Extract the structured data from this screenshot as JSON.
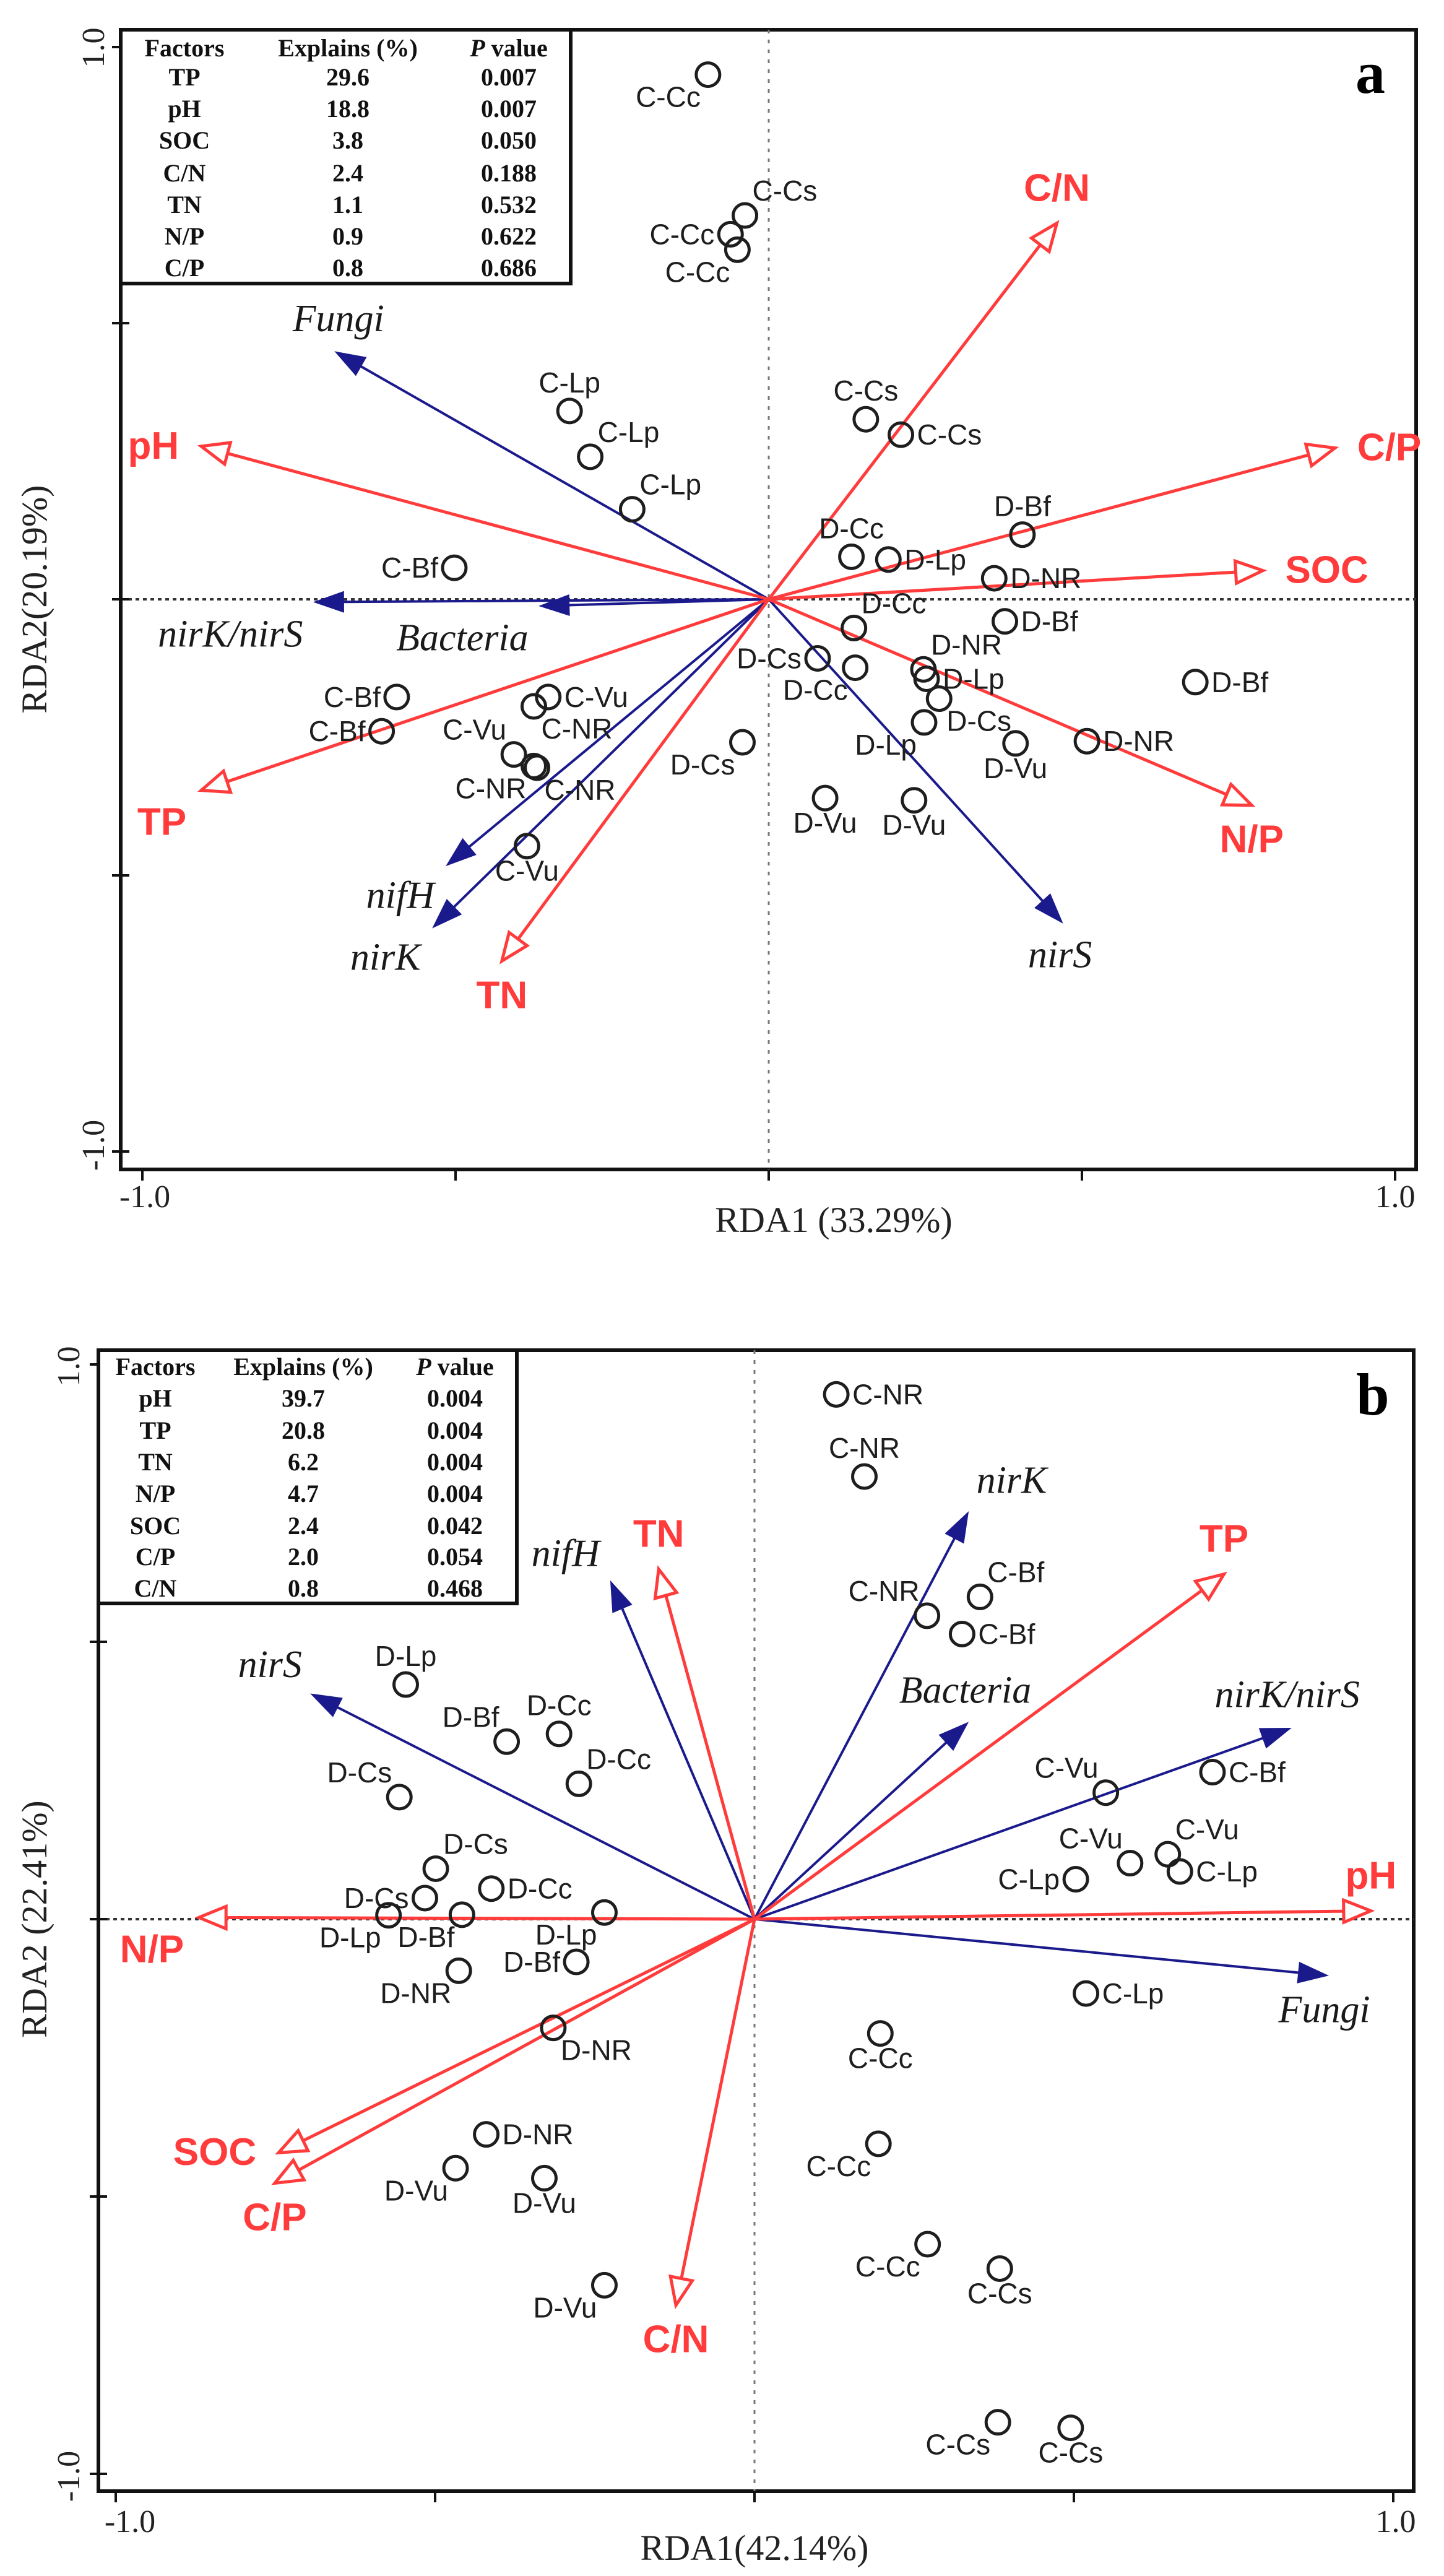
{
  "colors": {
    "environment": "#ff3b3b",
    "species": "#1a1a8c",
    "sites": "#1e1e1e"
  },
  "chart_data": [
    {
      "type": "scatter",
      "subtype": "RDA biplot",
      "panel_label": "a",
      "xlabel": "RDA1 (33.29%)",
      "ylabel": "RDA2(20.19%)",
      "xlim": [
        -1.0,
        1.0
      ],
      "ylim": [
        -1.0,
        1.0
      ],
      "x_tick_labels": [
        "-1.0",
        "1.0"
      ],
      "y_tick_labels": [
        "1.0",
        "-1.0"
      ],
      "table": {
        "headers": [
          "Factors",
          "Explains (%)",
          "P value"
        ],
        "rows": [
          [
            "TP",
            "29.6",
            "0.007"
          ],
          [
            "pH",
            "18.8",
            "0.007"
          ],
          [
            "SOC",
            "3.8",
            "0.050"
          ],
          [
            "C/N",
            "2.4",
            "0.188"
          ],
          [
            "TN",
            "1.1",
            "0.532"
          ],
          [
            "N/P",
            "0.9",
            "0.622"
          ],
          [
            "C/P",
            "0.8",
            "0.686"
          ]
        ]
      },
      "environment_arrows": [
        {
          "name": "TP",
          "x": -0.906,
          "y": -0.346,
          "label_pos": "bottom-left"
        },
        {
          "name": "pH",
          "x": -0.906,
          "y": 0.277,
          "label_pos": "left"
        },
        {
          "name": "SOC",
          "x": 0.789,
          "y": 0.052,
          "label_pos": "right"
        },
        {
          "name": "C/N",
          "x": 0.46,
          "y": 0.681,
          "label_pos": "top"
        },
        {
          "name": "TN",
          "x": -0.426,
          "y": -0.655,
          "label_pos": "bottom"
        },
        {
          "name": "N/P",
          "x": 0.771,
          "y": -0.373,
          "label_pos": "bottom"
        },
        {
          "name": "C/P",
          "x": 0.904,
          "y": 0.274,
          "label_pos": "right"
        }
      ],
      "species_arrows": [
        {
          "name": "Fungi",
          "x": -0.687,
          "y": 0.445,
          "label_pos": "top"
        },
        {
          "name": "Bacteria",
          "x": -0.36,
          "y": -0.012,
          "label_pos": "bottom-left"
        },
        {
          "name": "nirK/nirS",
          "x": -0.72,
          "y": -0.005,
          "label_pos": "bottom-left"
        },
        {
          "name": "nifH",
          "x": -0.51,
          "y": -0.478,
          "label_pos": "bottom-left"
        },
        {
          "name": "nirK",
          "x": -0.532,
          "y": -0.59,
          "label_pos": "bottom-left"
        },
        {
          "name": "nirS",
          "x": 0.465,
          "y": -0.581,
          "label_pos": "bottom"
        }
      ],
      "sites": [
        {
          "label": "C-Cc",
          "x": -0.097,
          "y": 0.95,
          "label_pos": "bottom-left"
        },
        {
          "label": "C-Cs",
          "x": -0.038,
          "y": 0.695,
          "label_pos": "top-right"
        },
        {
          "label": "C-Cc",
          "x": -0.061,
          "y": 0.661,
          "label_pos": "left"
        },
        {
          "label": "C-Cc",
          "x": -0.05,
          "y": 0.633,
          "label_pos": "bottom-left"
        },
        {
          "label": "C-Lp",
          "x": -0.318,
          "y": 0.341,
          "label_pos": "top"
        },
        {
          "label": "C-Lp",
          "x": -0.285,
          "y": 0.258,
          "label_pos": "top-right"
        },
        {
          "label": "C-Lp",
          "x": -0.218,
          "y": 0.163,
          "label_pos": "top-right"
        },
        {
          "label": "C-Cs",
          "x": 0.155,
          "y": 0.326,
          "label_pos": "top"
        },
        {
          "label": "C-Cs",
          "x": 0.211,
          "y": 0.298,
          "label_pos": "right"
        },
        {
          "label": "D-Bf",
          "x": 0.405,
          "y": 0.117,
          "label_pos": "top"
        },
        {
          "label": "D-Cc",
          "x": 0.132,
          "y": 0.077,
          "label_pos": "top"
        },
        {
          "label": "D-Lp",
          "x": 0.191,
          "y": 0.072,
          "label_pos": "right"
        },
        {
          "label": "D-NR",
          "x": 0.36,
          "y": 0.038,
          "label_pos": "right"
        },
        {
          "label": "C-Bf",
          "x": -0.502,
          "y": 0.057,
          "label_pos": "left"
        },
        {
          "label": "D-Cc",
          "x": 0.136,
          "y": -0.052,
          "label_pos": "top-right"
        },
        {
          "label": "D-Bf",
          "x": 0.377,
          "y": -0.04,
          "label_pos": "right"
        },
        {
          "label": "D-NR",
          "x": 0.247,
          "y": -0.127,
          "label_pos": "top-right"
        },
        {
          "label": "D-Lp",
          "x": 0.252,
          "y": -0.144,
          "label_pos": "right"
        },
        {
          "label": "D-Cs",
          "x": 0.078,
          "y": -0.107,
          "label_pos": "left"
        },
        {
          "label": "D-Cc",
          "x": 0.138,
          "y": -0.124,
          "label_pos": "bottom-left"
        },
        {
          "label": "D-Cs",
          "x": 0.272,
          "y": -0.18,
          "label_pos": "bottom-right"
        },
        {
          "label": "D-Lp",
          "x": 0.248,
          "y": -0.223,
          "label_pos": "bottom-left"
        },
        {
          "label": "D-Vu",
          "x": 0.394,
          "y": -0.261,
          "label_pos": "bottom"
        },
        {
          "label": "D-NR",
          "x": 0.508,
          "y": -0.257,
          "label_pos": "right"
        },
        {
          "label": "D-Bf",
          "x": 0.681,
          "y": -0.15,
          "label_pos": "right"
        },
        {
          "label": "D-Cs",
          "x": -0.042,
          "y": -0.259,
          "label_pos": "bottom-left"
        },
        {
          "label": "D-Vu",
          "x": 0.09,
          "y": -0.36,
          "label_pos": "bottom"
        },
        {
          "label": "D-Vu",
          "x": 0.232,
          "y": -0.364,
          "label_pos": "bottom"
        },
        {
          "label": "C-Bf",
          "x": -0.594,
          "y": -0.177,
          "label_pos": "left"
        },
        {
          "label": "C-Bf",
          "x": -0.618,
          "y": -0.239,
          "label_pos": "left"
        },
        {
          "label": "C-Vu",
          "x": -0.352,
          "y": -0.177,
          "label_pos": "right"
        },
        {
          "label": "C-NR",
          "x": -0.375,
          "y": -0.194,
          "label_pos": "bottom-right"
        },
        {
          "label": "C-Vu",
          "x": -0.407,
          "y": -0.281,
          "label_pos": "top-left"
        },
        {
          "label": "C-NR",
          "x": -0.375,
          "y": -0.302,
          "label_pos": "bottom-left"
        },
        {
          "label": "C-NR",
          "x": -0.37,
          "y": -0.305,
          "label_pos": "bottom-right"
        },
        {
          "label": "C-Vu",
          "x": -0.386,
          "y": -0.447,
          "label_pos": "bottom"
        }
      ]
    },
    {
      "type": "scatter",
      "subtype": "RDA biplot",
      "panel_label": "b",
      "xlabel": "RDA1(42.14%)",
      "ylabel": "RDA2 (22.41%)",
      "xlim": [
        -1.0,
        1.0
      ],
      "ylim": [
        -1.0,
        1.0
      ],
      "x_tick_labels": [
        "-1.0",
        "1.0"
      ],
      "y_tick_labels": [
        "1.0",
        "-1.0"
      ],
      "table": {
        "headers": [
          "Factors",
          "Explains (%)",
          "P value"
        ],
        "rows": [
          [
            "pH",
            "39.7",
            "0.004"
          ],
          [
            "TP",
            "20.8",
            "0.004"
          ],
          [
            "TN",
            "6.2",
            "0.004"
          ],
          [
            "N/P",
            "4.7",
            "0.004"
          ],
          [
            "SOC",
            "2.4",
            "0.042"
          ],
          [
            "C/P",
            "2.0",
            "0.054"
          ],
          [
            "C/N",
            "0.8",
            "0.468"
          ]
        ]
      },
      "environment_arrows": [
        {
          "name": "pH",
          "x": 0.965,
          "y": 0.015,
          "label_pos": "top"
        },
        {
          "name": "TP",
          "x": 0.735,
          "y": 0.622,
          "label_pos": "top"
        },
        {
          "name": "TN",
          "x": -0.15,
          "y": 0.631,
          "label_pos": "top"
        },
        {
          "name": "N/P",
          "x": -0.87,
          "y": 0.003,
          "label_pos": "bottom-left"
        },
        {
          "name": "SOC",
          "x": -0.745,
          "y": -0.421,
          "label_pos": "left"
        },
        {
          "name": "C/P",
          "x": -0.751,
          "y": -0.476,
          "label_pos": "bottom"
        },
        {
          "name": "C/N",
          "x": -0.123,
          "y": -0.696,
          "label_pos": "bottom"
        }
      ],
      "species_arrows": [
        {
          "name": "nifH",
          "x": -0.223,
          "y": 0.603,
          "label_pos": "top-left"
        },
        {
          "name": "nirS",
          "x": -0.689,
          "y": 0.403,
          "label_pos": "top-left"
        },
        {
          "name": "nirK",
          "x": 0.332,
          "y": 0.728,
          "label_pos": "top-right"
        },
        {
          "name": "Bacteria",
          "x": 0.33,
          "y": 0.35,
          "label_pos": "top"
        },
        {
          "name": "nirK/nirS",
          "x": 0.834,
          "y": 0.342,
          "label_pos": "top"
        },
        {
          "name": "Fungi",
          "x": 0.892,
          "y": -0.101,
          "label_pos": "bottom"
        }
      ],
      "sites": [
        {
          "label": "C-NR",
          "x": 0.128,
          "y": 0.946,
          "label_pos": "right"
        },
        {
          "label": "C-NR",
          "x": 0.172,
          "y": 0.798,
          "label_pos": "top"
        },
        {
          "label": "C-NR",
          "x": 0.27,
          "y": 0.547,
          "label_pos": "top-left"
        },
        {
          "label": "C-Bf",
          "x": 0.353,
          "y": 0.581,
          "label_pos": "top-right"
        },
        {
          "label": "C-Bf",
          "x": 0.325,
          "y": 0.514,
          "label_pos": "right"
        },
        {
          "label": "C-Vu",
          "x": 0.55,
          "y": 0.228,
          "label_pos": "top-left"
        },
        {
          "label": "C-Bf",
          "x": 0.717,
          "y": 0.265,
          "label_pos": "right"
        },
        {
          "label": "C-Vu",
          "x": 0.588,
          "y": 0.101,
          "label_pos": "top-left"
        },
        {
          "label": "C-Vu",
          "x": 0.647,
          "y": 0.117,
          "label_pos": "top-right"
        },
        {
          "label": "C-Lp",
          "x": 0.666,
          "y": 0.086,
          "label_pos": "right"
        },
        {
          "label": "C-Lp",
          "x": 0.503,
          "y": 0.072,
          "label_pos": "left"
        },
        {
          "label": "C-Lp",
          "x": 0.519,
          "y": -0.134,
          "label_pos": "right"
        },
        {
          "label": "C-Cc",
          "x": 0.197,
          "y": -0.206,
          "label_pos": "bottom"
        },
        {
          "label": "C-Cc",
          "x": 0.194,
          "y": -0.405,
          "label_pos": "bottom-left"
        },
        {
          "label": "C-Cc",
          "x": 0.271,
          "y": -0.586,
          "label_pos": "bottom-left"
        },
        {
          "label": "C-Cs",
          "x": 0.384,
          "y": -0.63,
          "label_pos": "bottom"
        },
        {
          "label": "C-Cs",
          "x": 0.381,
          "y": -0.907,
          "label_pos": "bottom-left"
        },
        {
          "label": "C-Cs",
          "x": 0.495,
          "y": -0.917,
          "label_pos": "bottom"
        },
        {
          "label": "D-Lp",
          "x": -0.546,
          "y": 0.423,
          "label_pos": "top"
        },
        {
          "label": "D-Bf",
          "x": -0.388,
          "y": 0.32,
          "label_pos": "top-left"
        },
        {
          "label": "D-Cc",
          "x": -0.306,
          "y": 0.334,
          "label_pos": "top"
        },
        {
          "label": "D-Cc",
          "x": -0.275,
          "y": 0.244,
          "label_pos": "top-right"
        },
        {
          "label": "D-Cs",
          "x": -0.556,
          "y": 0.22,
          "label_pos": "top-left"
        },
        {
          "label": "D-Cs",
          "x": -0.499,
          "y": 0.091,
          "label_pos": "top-right"
        },
        {
          "label": "D-Cs",
          "x": -0.516,
          "y": 0.038,
          "label_pos": "left"
        },
        {
          "label": "D-Cc",
          "x": -0.412,
          "y": 0.055,
          "label_pos": "right"
        },
        {
          "label": "D-Lp",
          "x": -0.573,
          "y": 0.007,
          "label_pos": "bottom-left"
        },
        {
          "label": "D-Bf",
          "x": -0.458,
          "y": 0.008,
          "label_pos": "bottom-left"
        },
        {
          "label": "D-Lp",
          "x": -0.235,
          "y": 0.012,
          "label_pos": "bottom-left"
        },
        {
          "label": "D-Bf",
          "x": -0.279,
          "y": -0.077,
          "label_pos": "left"
        },
        {
          "label": "D-NR",
          "x": -0.463,
          "y": -0.093,
          "label_pos": "bottom-left"
        },
        {
          "label": "D-NR",
          "x": -0.315,
          "y": -0.196,
          "label_pos": "bottom-right"
        },
        {
          "label": "D-NR",
          "x": -0.42,
          "y": -0.388,
          "label_pos": "right"
        },
        {
          "label": "D-Vu",
          "x": -0.468,
          "y": -0.449,
          "label_pos": "bottom-left"
        },
        {
          "label": "D-Vu",
          "x": -0.329,
          "y": -0.467,
          "label_pos": "bottom"
        },
        {
          "label": "D-Vu",
          "x": -0.235,
          "y": -0.66,
          "label_pos": "bottom-left"
        }
      ]
    }
  ]
}
